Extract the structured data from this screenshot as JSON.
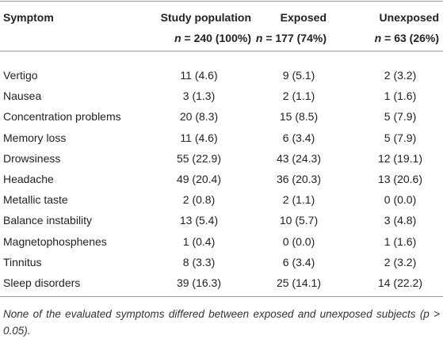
{
  "table": {
    "header": [
      "Symptom",
      "Study population",
      "Exposed",
      "Unexposed"
    ],
    "subheader": [
      {
        "symbol": "n",
        "value": "= 240 (100%)"
      },
      {
        "symbol": "n",
        "value": "= 177 (74%)"
      },
      {
        "symbol": "n",
        "value": "= 63 (26%)"
      }
    ],
    "rows": [
      [
        "Vertigo",
        "11 (4.6)",
        "9 (5.1)",
        "2 (3.2)"
      ],
      [
        "Nausea",
        "3 (1.3)",
        "2 (1.1)",
        "1 (1.6)"
      ],
      [
        "Concentration problems",
        "20 (8.3)",
        "15 (8.5)",
        "5 (7.9)"
      ],
      [
        "Memory loss",
        "11 (4.6)",
        "6 (3.4)",
        "5 (7.9)"
      ],
      [
        "Drowsiness",
        "55 (22.9)",
        "43 (24.3)",
        "12 (19.1)"
      ],
      [
        "Headache",
        "49 (20.4)",
        "36 (20.3)",
        "13 (20.6)"
      ],
      [
        "Metallic taste",
        "2 (0.8)",
        "2 (1.1)",
        "0 (0.0)"
      ],
      [
        "Balance instability",
        "13 (5.4)",
        "10 (5.7)",
        "3 (4.8)"
      ],
      [
        "Magnetophosphenes",
        "1 (0.4)",
        "0 (0.0)",
        "1 (1.6)"
      ],
      [
        "Tinnitus",
        "8 (3.3)",
        "6 (3.4)",
        "2 (3.2)"
      ],
      [
        "Sleep disorders",
        "39 (16.3)",
        "25 (14.1)",
        "14 (22.2)"
      ]
    ]
  },
  "footnote": "None of the evaluated symptoms differed between exposed and unexposed subjects (p > 0.05)."
}
